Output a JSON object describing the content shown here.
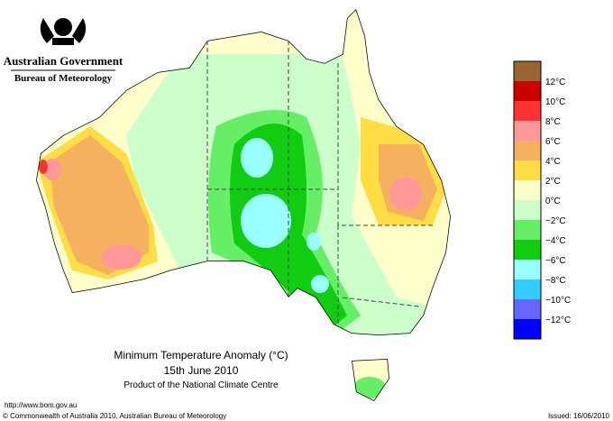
{
  "header": {
    "government": "Australian Government",
    "agency": "Bureau of Meteorology"
  },
  "map": {
    "title": "Minimum Temperature Anomaly (°C)",
    "date": "15th June 2010",
    "product": "Product of the National Climate Centre"
  },
  "legend": {
    "colors": [
      "#996633",
      "#cc0000",
      "#ff3333",
      "#ff9999",
      "#f5b060",
      "#ffdd44",
      "#ffffcc",
      "#ccffcc",
      "#66ee66",
      "#11cc11",
      "#99ffff",
      "#33ccff",
      "#6666ff",
      "#0000ff"
    ],
    "labels": [
      "12°C",
      "10°C",
      "8°C",
      "6°C",
      "4°C",
      "2°C",
      "0°C",
      "−2°C",
      "−4°C",
      "−6°C",
      "−8°C",
      "−10°C",
      "−12°C"
    ]
  },
  "footer": {
    "url": "http://www.bom.gov.au",
    "copyright": "© Commonwealth of Australia 2010, Australian Bureau of Meteorology",
    "issued": "Issued: 16/06/2010"
  }
}
